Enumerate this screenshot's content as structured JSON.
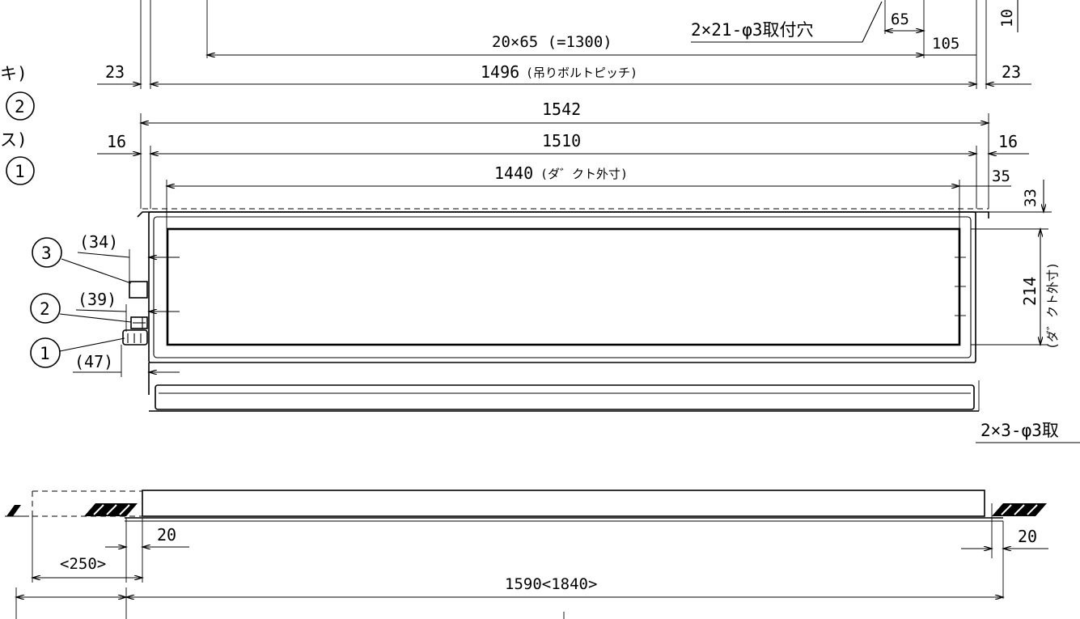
{
  "dimensions": {
    "top_pitch": "20×65 (=1300)",
    "hole_spec_top": "2×21-φ3取付穴",
    "dim_65": "65",
    "dim_105": "105",
    "dim_10": "10",
    "dim_23": "23",
    "bolt_pitch_value": "1496",
    "bolt_pitch_note": "(吊りボルトピッチ)",
    "dim_1542": "1542",
    "dim_16": "16",
    "dim_1510": "1510",
    "duct_width_value": "1440",
    "duct_width_note": "(ダ゛クト外寸)",
    "dim_35": "35",
    "dim_33": "33",
    "duct_height_value": "214",
    "duct_height_note": "(ダ゛クト外寸)",
    "dim_34": "(34)",
    "dim_39": "(39)",
    "dim_47": "(47)",
    "hole_spec_bottom": "2×3-φ3取",
    "dim_20": "20",
    "dim_250": "<250>",
    "overall_length": "1590<1840>"
  },
  "legend": {
    "partial_top": "キ)",
    "partial_mid": "ス)",
    "callout_top": "2",
    "callout_bottom": "1"
  },
  "callouts": [
    "3",
    "2",
    "1"
  ]
}
